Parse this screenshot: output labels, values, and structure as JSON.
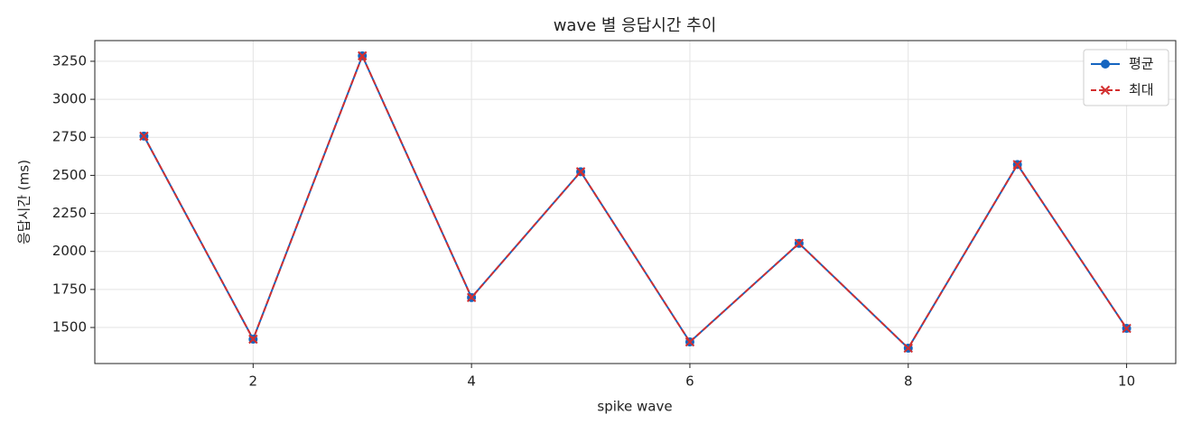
{
  "chart_data": {
    "type": "line",
    "title": "wave 별 응답시간 추이",
    "xlabel": "spike wave",
    "ylabel": "응답시간 (ms)",
    "x": [
      1,
      2,
      3,
      4,
      5,
      6,
      7,
      8,
      9,
      10
    ],
    "series": [
      {
        "name": "평균",
        "color": "#1565c0",
        "marker": "o",
        "linestyle": "solid",
        "values": [
          2758,
          1423,
          3286,
          1697,
          2524,
          1405,
          2053,
          1364,
          2571,
          1494
        ]
      },
      {
        "name": "최대",
        "color": "#d32f2f",
        "marker": "x",
        "linestyle": "dashed",
        "values": [
          2758,
          1423,
          3286,
          1697,
          2524,
          1405,
          2053,
          1364,
          2571,
          1494
        ]
      }
    ],
    "xlim": [
      0.55,
      10.45
    ],
    "xticks": [
      2,
      4,
      6,
      8,
      10
    ],
    "ylim": [
      1263,
      3386
    ],
    "yticks": [
      1500,
      1750,
      2000,
      2250,
      2500,
      2750,
      3000,
      3250
    ],
    "grid": true,
    "legend": "upper right"
  }
}
